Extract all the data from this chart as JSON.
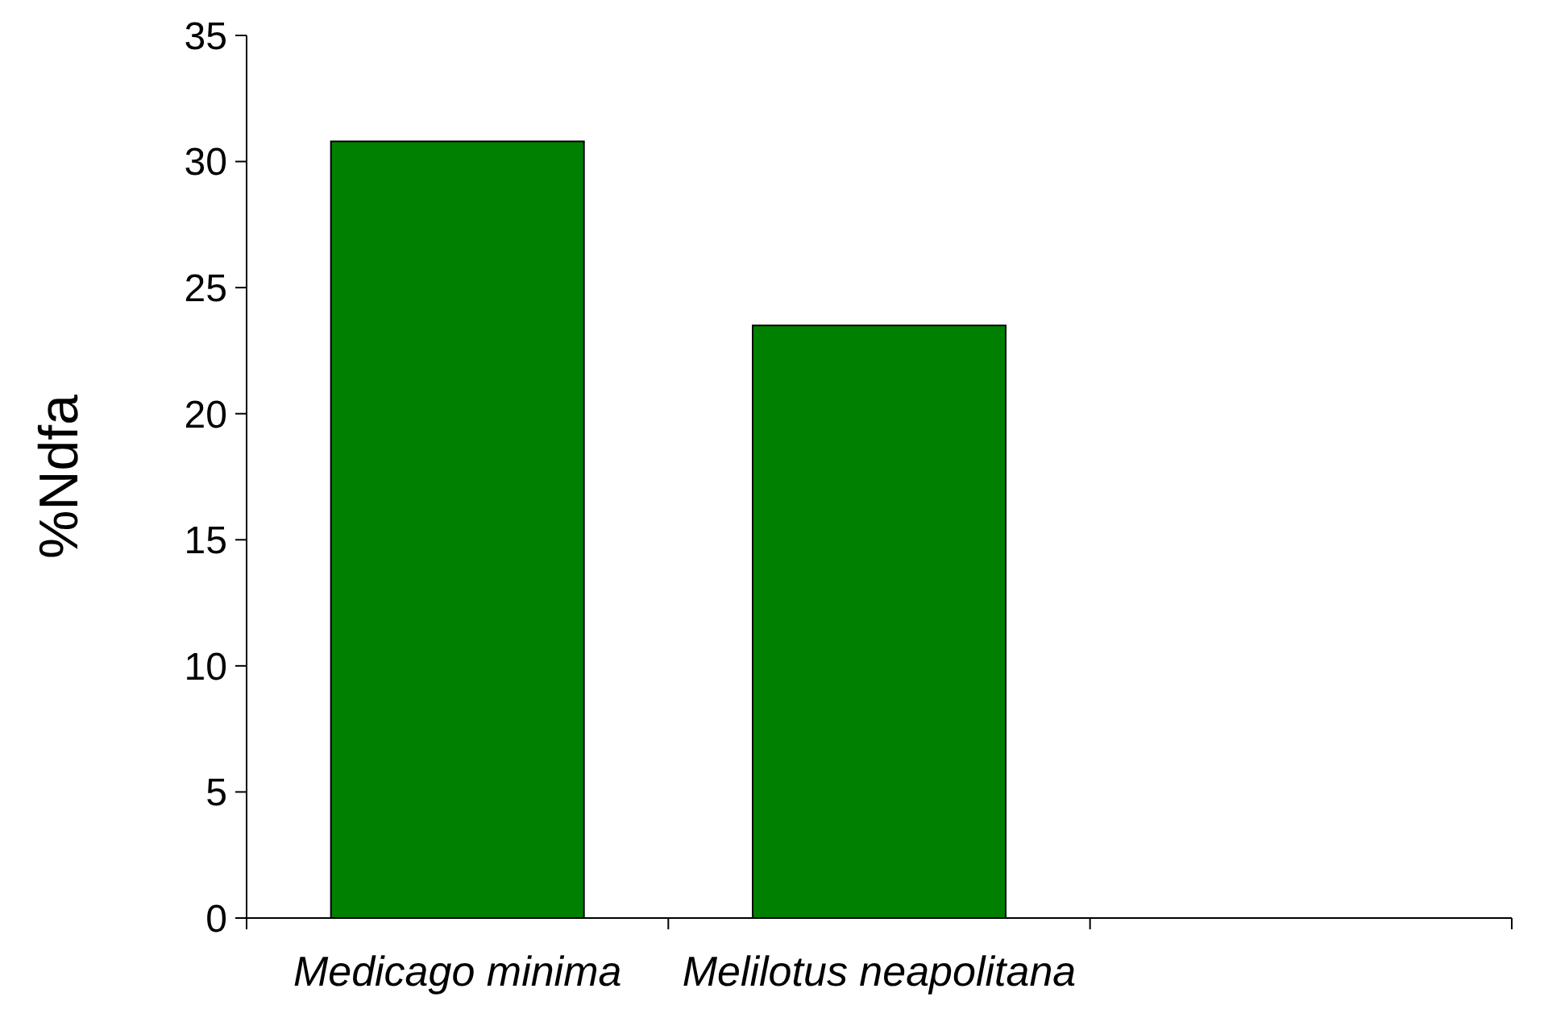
{
  "chart_data": {
    "type": "bar",
    "ylabel": "%Ndfa",
    "categories": [
      "Medicago minima",
      "Melilotus neapolitana",
      null
    ],
    "values": [
      30.8,
      23.5,
      null
    ],
    "color": "#008000",
    "ylim": [
      0,
      35
    ],
    "yticks": [
      0,
      5,
      10,
      15,
      20,
      25,
      30,
      35
    ],
    "grid": false
  }
}
